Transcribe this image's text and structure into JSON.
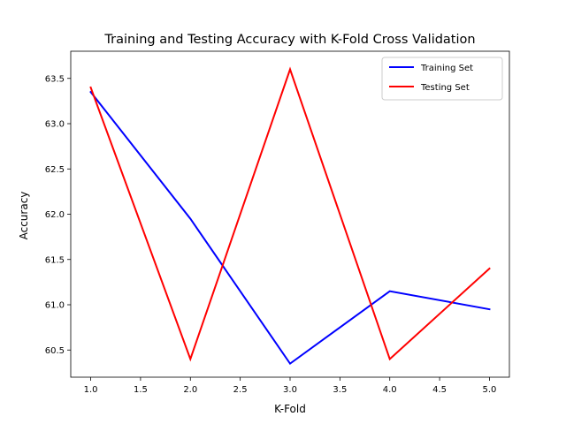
{
  "chart_data": {
    "type": "line",
    "title": "Training and Testing Accuracy with K-Fold Cross Validation",
    "xlabel": "K-Fold",
    "ylabel": "Accuracy",
    "x": [
      1,
      2,
      3,
      4,
      5
    ],
    "xlim": [
      0.8,
      5.2
    ],
    "ylim": [
      60.2,
      63.8
    ],
    "xticks": [
      "1.0",
      "1.5",
      "2.0",
      "2.5",
      "3.0",
      "3.5",
      "4.0",
      "4.5",
      "5.0"
    ],
    "yticks": [
      "60.5",
      "61.0",
      "61.5",
      "62.0",
      "62.5",
      "63.0",
      "63.5"
    ],
    "grid": false,
    "legend_position": "top-right",
    "series": [
      {
        "name": "Training Set",
        "color": "#0000ff",
        "values": [
          63.35,
          61.95,
          60.35,
          61.15,
          60.95
        ]
      },
      {
        "name": "Testing Set",
        "color": "#ff0000",
        "values": [
          63.4,
          60.4,
          63.6,
          60.4,
          61.4
        ]
      }
    ]
  }
}
